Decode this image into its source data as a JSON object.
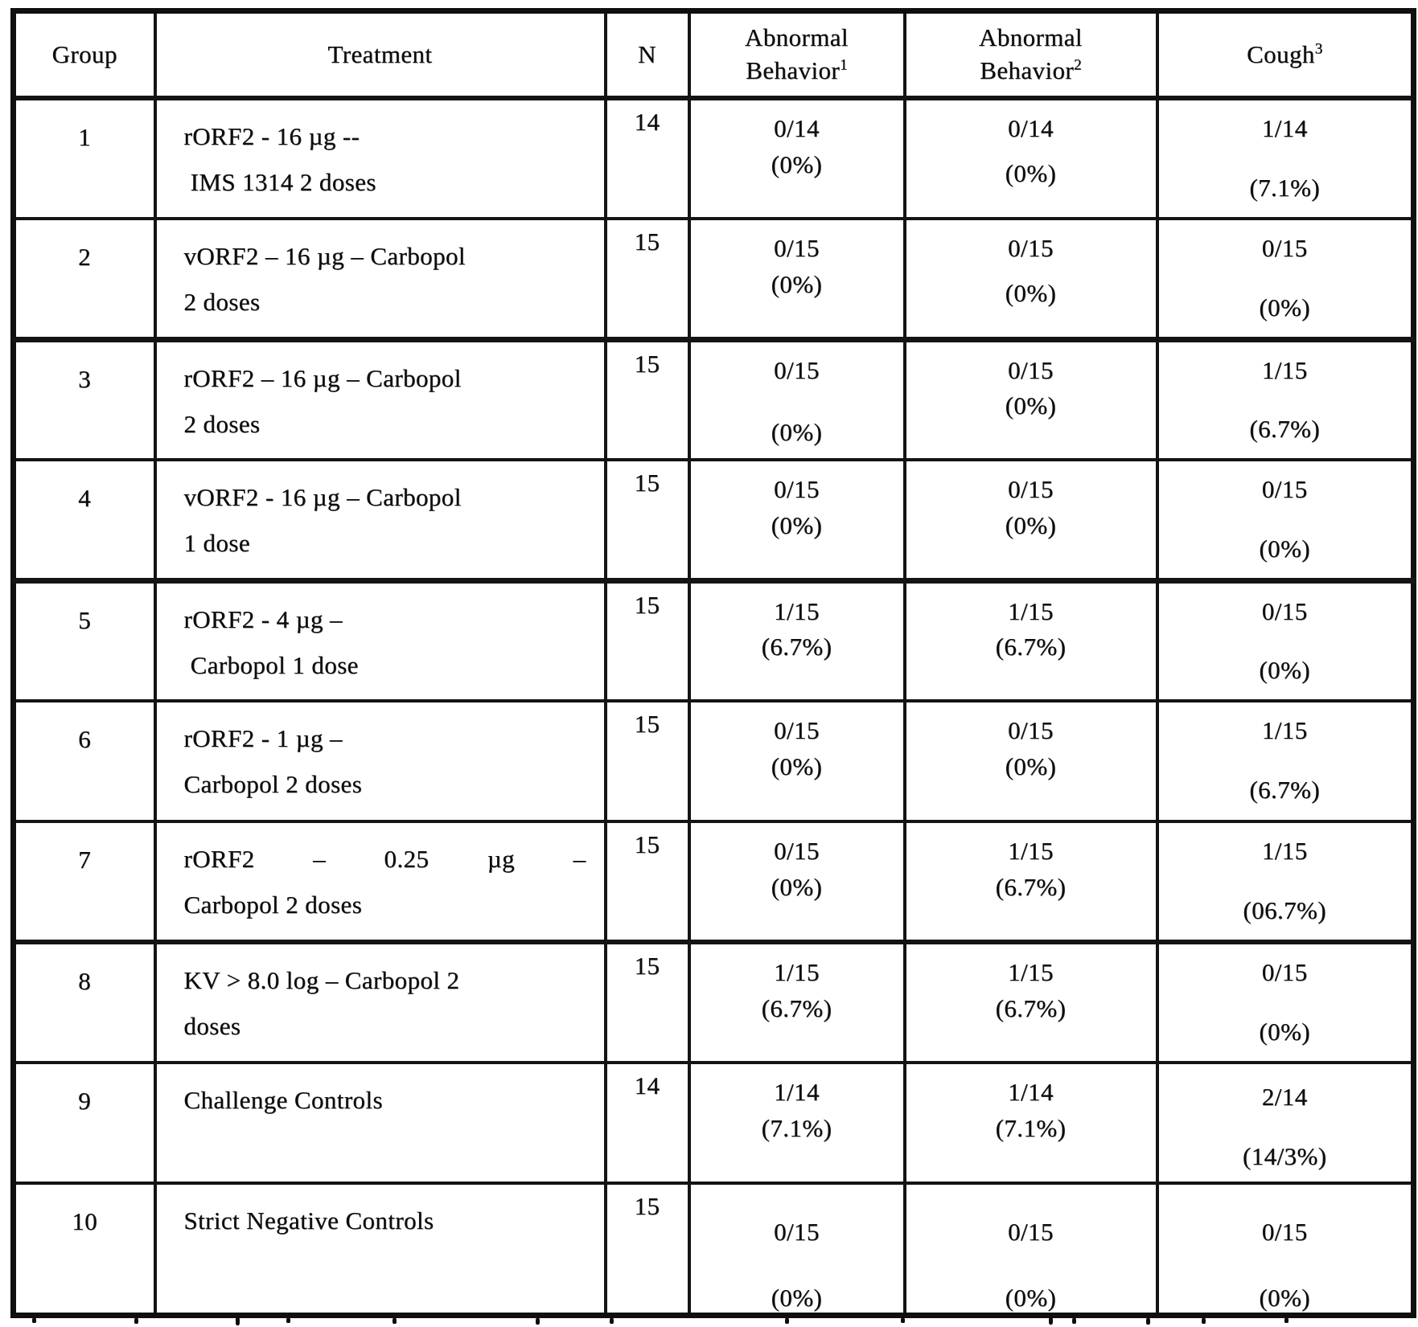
{
  "table": {
    "columns": [
      {
        "label": "Group",
        "lines": [
          "Group"
        ],
        "sup": ""
      },
      {
        "label": "Treatment",
        "lines": [
          "Treatment"
        ],
        "sup": ""
      },
      {
        "label": "N",
        "lines": [
          "N"
        ],
        "sup": ""
      },
      {
        "label": "Abnormal Behavior 1",
        "lines": [
          "Abnormal",
          "Behavior"
        ],
        "sup": "1"
      },
      {
        "label": "Abnormal Behavior 2",
        "lines": [
          "Abnormal",
          "Behavior"
        ],
        "sup": "2"
      },
      {
        "label": "Cough 3",
        "lines": [
          "Cough"
        ],
        "sup": "3"
      }
    ],
    "rows": [
      {
        "group": "1",
        "treatment_lines": [
          "rORF2 - 16 µg --",
          " IMS 1314 2 doses"
        ],
        "n": "14",
        "cells": {
          "ab1": {
            "count": "0/14",
            "pct": "(0%)"
          },
          "ab2": {
            "count": "0/14",
            "pct": "(0%)"
          },
          "cough": {
            "count": "1/14",
            "pct": "(7.1%)"
          }
        }
      },
      {
        "group": "2",
        "treatment_lines": [
          "vORF2 – 16 µg – Carbopol",
          "2 doses"
        ],
        "n": "15",
        "cells": {
          "ab1": {
            "count": "0/15",
            "pct": "(0%)"
          },
          "ab2": {
            "count": "0/15",
            "pct": "(0%)"
          },
          "cough": {
            "count": "0/15",
            "pct": "(0%)"
          }
        }
      },
      {
        "group": "3",
        "treatment_lines": [
          "rORF2 – 16 µg – Carbopol",
          "2 doses"
        ],
        "n": "15",
        "cells": {
          "ab1": {
            "count": "0/15",
            "pct": "(0%)"
          },
          "ab2": {
            "count": "0/15",
            "pct": "(0%)"
          },
          "cough": {
            "count": "1/15",
            "pct": "(6.7%)"
          }
        }
      },
      {
        "group": "4",
        "treatment_lines": [
          "vORF2 - 16 µg – Carbopol",
          "1 dose"
        ],
        "n": "15",
        "cells": {
          "ab1": {
            "count": "0/15",
            "pct": "(0%)"
          },
          "ab2": {
            "count": "0/15",
            "pct": "(0%)"
          },
          "cough": {
            "count": "0/15",
            "pct": "(0%)"
          }
        }
      },
      {
        "group": "5",
        "treatment_lines": [
          "rORF2 - 4 µg –",
          " Carbopol 1 dose"
        ],
        "n": "15",
        "cells": {
          "ab1": {
            "count": "1/15",
            "pct": "(6.7%)"
          },
          "ab2": {
            "count": "1/15",
            "pct": "(6.7%)"
          },
          "cough": {
            "count": "0/15",
            "pct": "(0%)"
          }
        }
      },
      {
        "group": "6",
        "treatment_lines": [
          "rORF2 - 1 µg –",
          "Carbopol 2 doses"
        ],
        "n": "15",
        "cells": {
          "ab1": {
            "count": "0/15",
            "pct": "(0%)"
          },
          "ab2": {
            "count": "0/15",
            "pct": "(0%)"
          },
          "cough": {
            "count": "1/15",
            "pct": "(6.7%)"
          }
        }
      },
      {
        "group": "7",
        "treatment_lines": [
          "rORF2 – 0.25 µg –",
          "Carbopol 2 doses"
        ],
        "justify_first_line": true,
        "n": "15",
        "cells": {
          "ab1": {
            "count": "0/15",
            "pct": "(0%)"
          },
          "ab2": {
            "count": "1/15",
            "pct": "(6.7%)"
          },
          "cough": {
            "count": "1/15",
            "pct": "(06.7%)"
          }
        }
      },
      {
        "group": "8",
        "treatment_lines": [
          "KV > 8.0 log – Carbopol 2",
          "doses"
        ],
        "n": "15",
        "cells": {
          "ab1": {
            "count": "1/15",
            "pct": "(6.7%)"
          },
          "ab2": {
            "count": "1/15",
            "pct": "(6.7%)"
          },
          "cough": {
            "count": "0/15",
            "pct": "(0%)"
          }
        }
      },
      {
        "group": "9",
        "treatment_lines": [
          "Challenge Controls"
        ],
        "n": "14",
        "cells": {
          "ab1": {
            "count": "1/14",
            "pct": "(7.1%)"
          },
          "ab2": {
            "count": "1/14",
            "pct": "(7.1%)"
          },
          "cough": {
            "count": "2/14",
            "pct": "(14/3%)"
          }
        }
      },
      {
        "group": "10",
        "treatment_lines": [
          "Strict Negative Controls"
        ],
        "n": "15",
        "cells": {
          "ab1": {
            "count": "0/15",
            "pct": "(0%)"
          },
          "ab2": {
            "count": "0/15",
            "pct": "(0%)"
          },
          "cough": {
            "count": "0/15",
            "pct": "(0%)"
          }
        }
      }
    ]
  }
}
